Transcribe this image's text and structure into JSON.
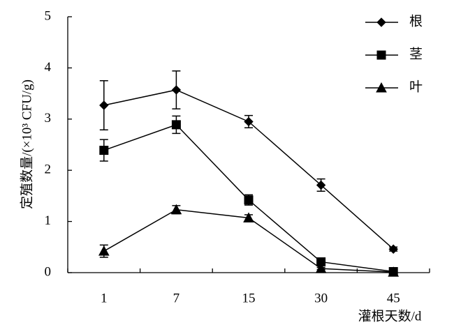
{
  "chart_data": {
    "type": "line",
    "x_label": "灌根天数/d",
    "y_label": "定殖数量/(×10³ CFU/g)",
    "categories": [
      "1",
      "7",
      "15",
      "30",
      "45"
    ],
    "ylim": [
      0,
      5
    ],
    "yticks": [
      0,
      1,
      2,
      3,
      4,
      5
    ],
    "legend": "top-right",
    "series": [
      {
        "name": "根",
        "marker": "diamond",
        "color": "#000000",
        "values": [
          3.27,
          3.57,
          2.95,
          1.71,
          0.46
        ],
        "errors": [
          0.48,
          0.37,
          0.12,
          0.12,
          0.04
        ]
      },
      {
        "name": "茎",
        "marker": "square",
        "color": "#000000",
        "values": [
          2.39,
          2.89,
          1.42,
          0.21,
          0.02
        ],
        "errors": [
          0.21,
          0.17,
          0.1,
          0.05,
          0.02
        ]
      },
      {
        "name": "叶",
        "marker": "triangle",
        "color": "#000000",
        "values": [
          0.42,
          1.23,
          1.07,
          0.08,
          0.01
        ],
        "errors": [
          0.12,
          0.08,
          0.06,
          0.02,
          0.01
        ]
      }
    ]
  }
}
